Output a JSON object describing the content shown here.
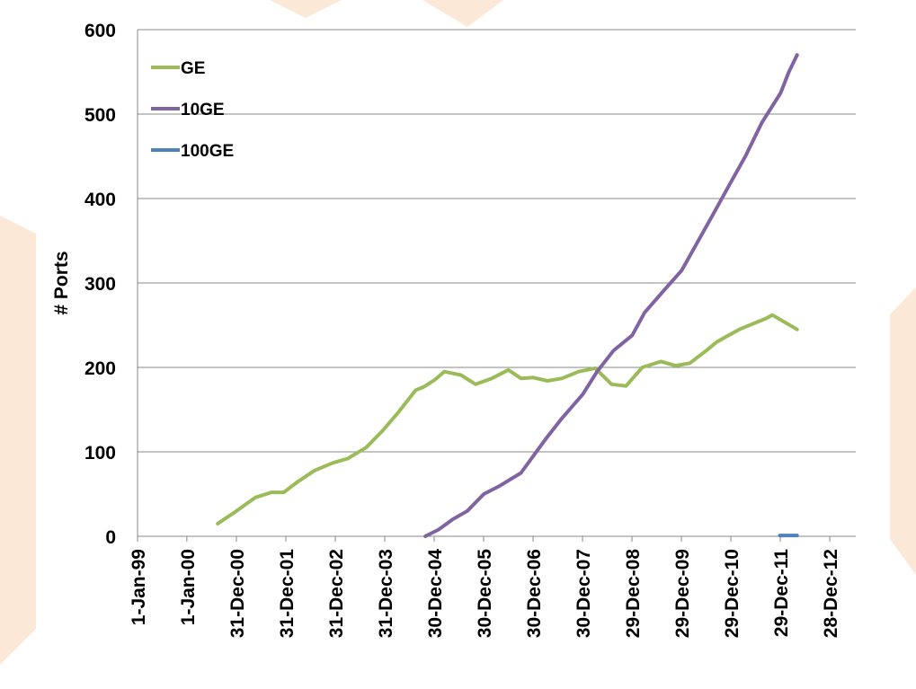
{
  "chart_data": {
    "type": "line",
    "y_label": "# Ports",
    "xlim": [
      "1999-01-01",
      "2013-07-08"
    ],
    "xticks": [
      {
        "value": "1999-01-01",
        "label": "1-Jan-99"
      },
      {
        "value": "1999-12-31",
        "label": "1-Jan-00"
      },
      {
        "value": "2000-12-31",
        "label": "31-Dec-00"
      },
      {
        "value": "2001-12-31",
        "label": "31-Dec-01"
      },
      {
        "value": "2002-12-31",
        "label": "31-Dec-02"
      },
      {
        "value": "2003-12-31",
        "label": "31-Dec-03"
      },
      {
        "value": "2004-12-30",
        "label": "30-Dec-04"
      },
      {
        "value": "2005-12-30",
        "label": "30-Dec-05"
      },
      {
        "value": "2006-12-30",
        "label": "30-Dec-06"
      },
      {
        "value": "2007-12-30",
        "label": "30-Dec-07"
      },
      {
        "value": "2008-12-29",
        "label": "29-Dec-08"
      },
      {
        "value": "2009-12-29",
        "label": "29-Dec-09"
      },
      {
        "value": "2010-12-29",
        "label": "29-Dec-10"
      },
      {
        "value": "2011-12-29",
        "label": "29-Dec-11"
      },
      {
        "value": "2012-12-28",
        "label": "28-Dec-12"
      }
    ],
    "ylim": [
      0,
      600
    ],
    "yticks": [
      0,
      100,
      200,
      300,
      400,
      500,
      600
    ],
    "grid": true,
    "legend": "top-left",
    "series": [
      {
        "name": "GE",
        "color": "#9bbb59",
        "x": [
          "2000-08-15",
          "2001-01-01",
          "2001-05-20",
          "2001-09-15",
          "2001-12-15",
          "2002-04-01",
          "2002-08-01",
          "2002-12-15",
          "2003-04-01",
          "2003-08-15",
          "2003-12-15",
          "2004-04-15",
          "2004-08-15",
          "2004-10-15",
          "2005-01-01",
          "2005-03-15",
          "2005-07-15",
          "2005-11-01",
          "2006-03-01",
          "2006-07-01",
          "2006-10-01",
          "2007-01-01",
          "2007-04-15",
          "2007-08-01",
          "2007-12-01",
          "2008-04-01",
          "2008-08-01",
          "2008-11-15",
          "2009-03-15",
          "2009-08-01",
          "2009-11-15",
          "2010-03-01",
          "2010-07-01",
          "2010-09-15",
          "2010-12-01",
          "2011-03-01",
          "2011-06-15",
          "2011-09-15",
          "2011-11-01",
          "2012-01-15",
          "2012-05-01"
        ],
        "values": [
          15,
          30,
          46,
          52,
          52,
          65,
          78,
          87,
          92,
          105,
          125,
          148,
          173,
          177,
          185,
          195,
          191,
          180,
          187,
          197,
          187,
          188,
          184,
          187,
          195,
          199,
          180,
          178,
          200,
          207,
          202,
          205,
          220,
          230,
          237,
          245,
          252,
          258,
          262,
          255,
          245
        ]
      },
      {
        "name": "10GE",
        "color": "#8064a2",
        "x": [
          "2004-10-25",
          "2005-02-01",
          "2005-05-15",
          "2005-09-01",
          "2005-12-31",
          "2006-05-01",
          "2006-10-01",
          "2006-12-31",
          "2007-04-01",
          "2007-08-01",
          "2007-12-31",
          "2008-04-15",
          "2008-08-15",
          "2008-12-31",
          "2009-04-01",
          "2009-08-15",
          "2009-12-31",
          "2010-04-15",
          "2010-08-15",
          "2010-12-31",
          "2011-04-15",
          "2011-08-15",
          "2011-12-31",
          "2012-03-01",
          "2012-05-01"
        ],
        "values": [
          0,
          8,
          20,
          30,
          50,
          60,
          75,
          95,
          115,
          140,
          168,
          195,
          220,
          238,
          265,
          290,
          315,
          345,
          380,
          420,
          450,
          490,
          525,
          550,
          570
        ]
      },
      {
        "name": "100GE",
        "color": "#4f81bd",
        "x": [
          "2011-12-25",
          "2012-05-01"
        ],
        "values": [
          1,
          1
        ]
      }
    ]
  }
}
